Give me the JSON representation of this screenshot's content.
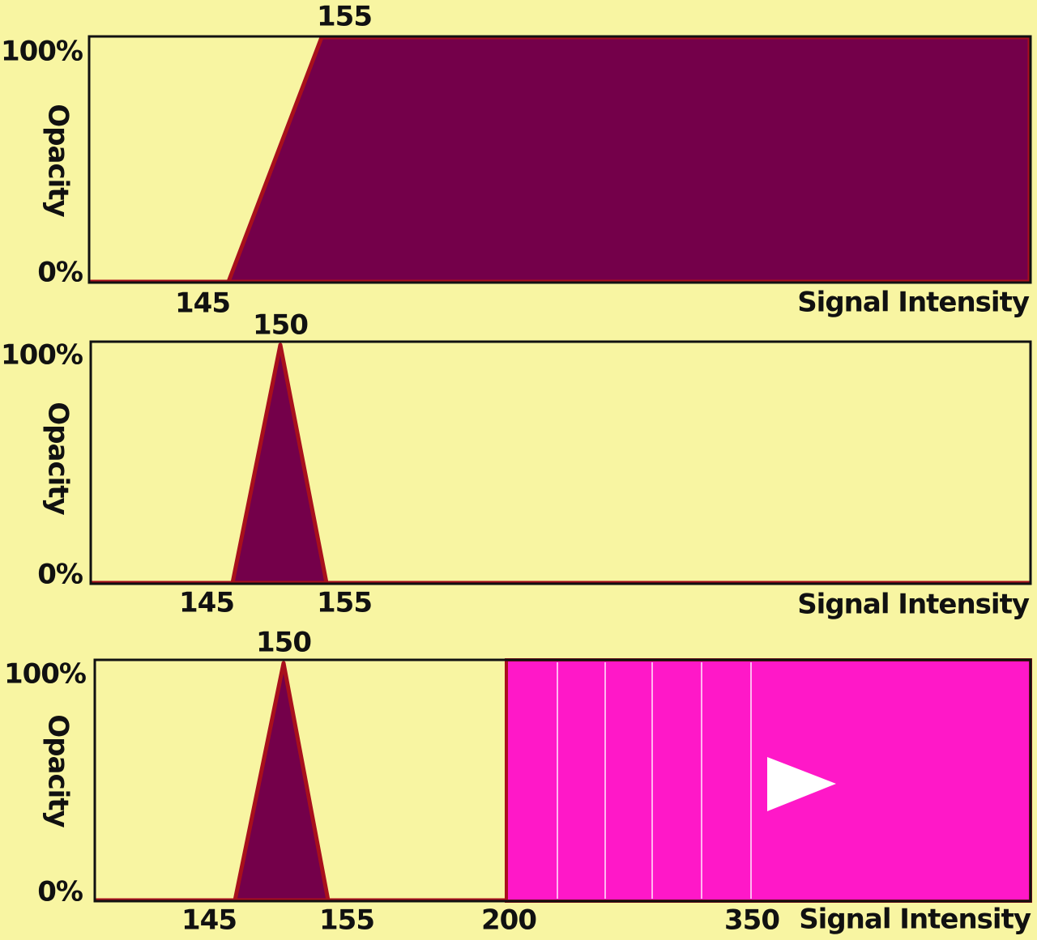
{
  "panels": [
    {
      "top_label": "155",
      "x_labels": [
        "145"
      ],
      "y_ticks": [
        "100%",
        "0%"
      ],
      "y_label": "Opacity",
      "x_axis_label": "Signal Intensity"
    },
    {
      "top_label": "150",
      "x_labels": [
        "145",
        "155"
      ],
      "y_ticks": [
        "100%",
        "0%"
      ],
      "y_label": "Opacity",
      "x_axis_label": "Signal Intensity"
    },
    {
      "top_label": "150",
      "x_labels": [
        "145",
        "155",
        "200",
        "350"
      ],
      "y_ticks": [
        "100%",
        "0%"
      ],
      "y_label": "Opacity",
      "x_axis_label": "Signal Intensity"
    }
  ]
}
